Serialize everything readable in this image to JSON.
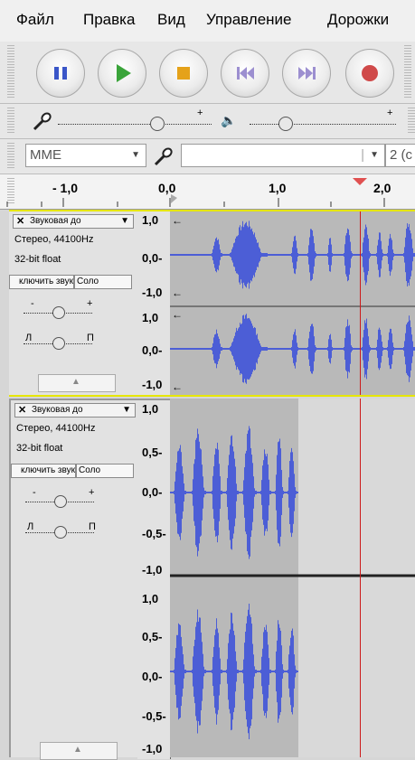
{
  "menu": [
    "Файл",
    "Правка",
    "Вид",
    "Управление",
    "Дорожки"
  ],
  "transport": {
    "buttons": [
      {
        "name": "pause-button",
        "icon": "pause-icon",
        "color": "#3a56c8"
      },
      {
        "name": "play-button",
        "icon": "play-icon",
        "color": "#3aa43a"
      },
      {
        "name": "stop-button",
        "icon": "stop-icon",
        "color": "#e5a21a"
      },
      {
        "name": "skip-start-button",
        "icon": "skip-start-icon",
        "color": "#9c8fd0"
      },
      {
        "name": "skip-end-button",
        "icon": "skip-end-icon",
        "color": "#9c8fd0"
      },
      {
        "name": "record-button",
        "icon": "record-icon",
        "color": "#d04a4a"
      }
    ]
  },
  "meters": {
    "rec_plus": "+",
    "play_plus": "+"
  },
  "device": {
    "host": "MME",
    "channels": "2 (с"
  },
  "ruler": {
    "labels": [
      "- 1,0",
      "0,0",
      "1,0",
      "2,0"
    ]
  },
  "tracks": [
    {
      "name": "Звуковая до",
      "info1": "Стерео, 44100Hz",
      "info2": "32-bit float",
      "mute": "ключить звук",
      "solo": "Соло",
      "gain_plus": "+",
      "pan_left": "Л",
      "pan_right": "П",
      "scale_top": [
        "1,0",
        "0,0-",
        "-1,0"
      ],
      "scale_bottom": [
        "1,0",
        "0,0-",
        "-1,0"
      ]
    },
    {
      "name": "Звуковая до",
      "info1": "Стерео, 44100Hz",
      "info2": "32-bit float",
      "mute": "ключить звук",
      "solo": "Соло",
      "gain_plus": "+",
      "pan_left": "Л",
      "pan_right": "П",
      "scale_top": [
        "1,0",
        "0,5-",
        "0,0-",
        "-0,5-",
        "-1,0"
      ],
      "scale_bottom": [
        "1,0",
        "0,5-",
        "0,0-",
        "-0,5-",
        "-1,0"
      ]
    }
  ],
  "colors": {
    "wave": "#4c5ed6",
    "selected_bg": "#b9b9b9",
    "unselected_bg": "#d9d9d9",
    "cursor": "#cc1a1a"
  }
}
